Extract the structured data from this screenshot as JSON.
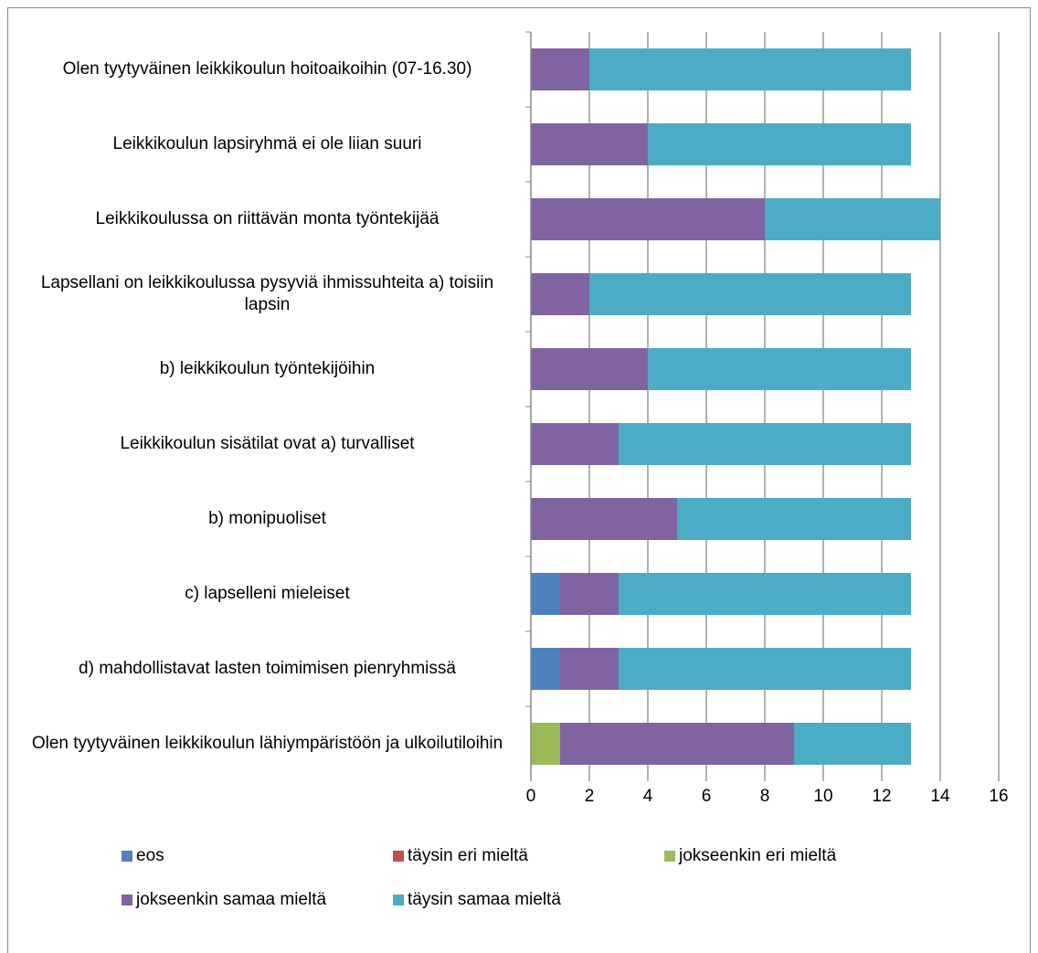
{
  "chart_data": {
    "type": "stacked-barh",
    "categories": [
      "Olen tyytyväinen leikkikoulun hoitoaikoihin (07-16.30)",
      "Leikkikoulun lapsiryhmä ei ole liian suuri",
      "Leikkikoulussa on riittävän monta työntekijää",
      "Lapsellani on leikkikoulussa pysyviä ihmissuhteita a) toisiin lapsin",
      "b) leikkikoulun työntekijöihin",
      "Leikkikoulun sisätilat ovat a) turvalliset",
      "b) monipuoliset",
      "c) lapselleni mieleiset",
      "d) mahdollistavat lasten toimimisen pienryhmissä",
      "Olen  tyytyväinen leikkikoulun lähiympäristöön ja ulkoilutiloihin"
    ],
    "series": [
      {
        "name": "eos",
        "color": "#4f81bd",
        "values": [
          0,
          0,
          0,
          0,
          0,
          0,
          0,
          1,
          1,
          0
        ]
      },
      {
        "name": "täysin eri mieltä",
        "color": "#c0504d",
        "values": [
          0,
          0,
          0,
          0,
          0,
          0,
          0,
          0,
          0,
          0
        ]
      },
      {
        "name": "jokseenkin eri mieltä",
        "color": "#9bbb59",
        "values": [
          0,
          0,
          0,
          0,
          0,
          0,
          0,
          0,
          0,
          1
        ]
      },
      {
        "name": "jokseenkin samaa mieltä",
        "color": "#8064a2",
        "values": [
          2,
          4,
          8,
          2,
          4,
          3,
          5,
          2,
          2,
          8
        ]
      },
      {
        "name": "täysin samaa mieltä",
        "color": "#4bacc6",
        "values": [
          11,
          9,
          6,
          11,
          9,
          10,
          8,
          10,
          10,
          4
        ]
      }
    ],
    "xlim": [
      0,
      16
    ],
    "xticks": [
      0,
      2,
      4,
      6,
      8,
      10,
      12,
      14,
      16
    ],
    "grid": true,
    "legend": "bottom"
  }
}
